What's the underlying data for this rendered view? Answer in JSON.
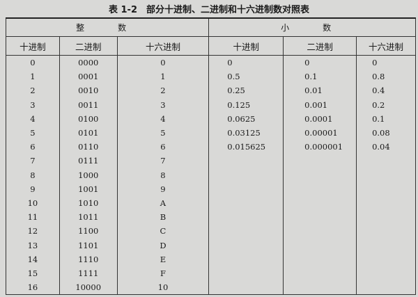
{
  "title": "表 1-2　部分十进制、二进制和十六进制数对照表",
  "groups": {
    "integer": "整　数",
    "fraction": "小　数"
  },
  "columns": [
    "十进制",
    "二进制",
    "十六进制",
    "十进制",
    "二进制",
    "十六进制"
  ],
  "integer_rows": [
    [
      "0",
      "0000",
      "0"
    ],
    [
      "1",
      "0001",
      "1"
    ],
    [
      "2",
      "0010",
      "2"
    ],
    [
      "3",
      "0011",
      "3"
    ],
    [
      "4",
      "0100",
      "4"
    ],
    [
      "5",
      "0101",
      "5"
    ],
    [
      "6",
      "0110",
      "6"
    ],
    [
      "7",
      "0111",
      "7"
    ],
    [
      "8",
      "1000",
      "8"
    ],
    [
      "9",
      "1001",
      "9"
    ],
    [
      "10",
      "1010",
      "A"
    ],
    [
      "11",
      "1011",
      "B"
    ],
    [
      "12",
      "1100",
      "C"
    ],
    [
      "13",
      "1101",
      "D"
    ],
    [
      "14",
      "1110",
      "E"
    ],
    [
      "15",
      "1111",
      "F"
    ],
    [
      "16",
      "10000",
      "10"
    ]
  ],
  "fraction_rows": [
    [
      "0",
      "0",
      "0"
    ],
    [
      "0.5",
      "0.1",
      "0.8"
    ],
    [
      "0.25",
      "0.01",
      "0.4"
    ],
    [
      "0.125",
      "0.001",
      "0.2"
    ],
    [
      "0.0625",
      "0.0001",
      "0.1"
    ],
    [
      "0.03125",
      "0.00001",
      "0.08"
    ],
    [
      "0.015625",
      "0.000001",
      "0.04"
    ]
  ]
}
